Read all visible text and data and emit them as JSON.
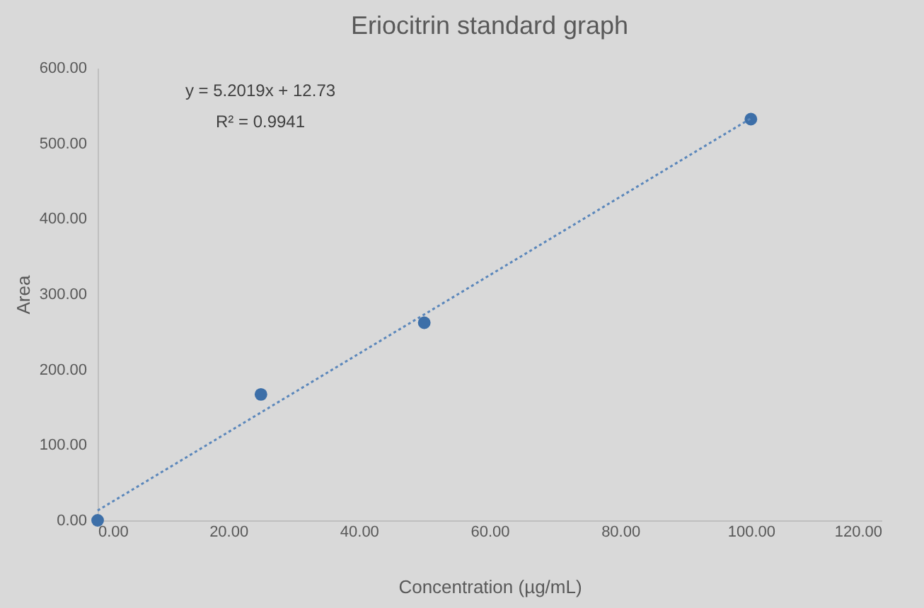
{
  "chart_data": {
    "type": "scatter",
    "title": "Eriocitrin standard graph",
    "xlabel": "Concentration (µg/mL)",
    "ylabel": "Area",
    "x": [
      0,
      25,
      50,
      100
    ],
    "series": [
      {
        "color": "#3d6fa8",
        "values": [
          0,
          167,
          262,
          532
        ]
      },
      {
        "type": "line",
        "color": "#5b87bb",
        "x": [
          0,
          100
        ],
        "values": [
          13,
          533
        ],
        "line_style": "dotted",
        "marker": "none"
      }
    ],
    "xlim": [
      0,
      120
    ],
    "ylim": [
      0,
      600
    ],
    "xticks": [
      {
        "value": 0,
        "label": "0.00"
      },
      {
        "value": 20,
        "label": "20.00"
      },
      {
        "value": 40,
        "label": "40.00"
      },
      {
        "value": 60,
        "label": "60.00"
      },
      {
        "value": 80,
        "label": "80.00"
      },
      {
        "value": 100,
        "label": "100.00"
      },
      {
        "value": 120,
        "label": "120.00"
      }
    ],
    "yticks": [
      {
        "value": 0,
        "label": "0.00"
      },
      {
        "value": 100,
        "label": "100.00"
      },
      {
        "value": 200,
        "label": "200.00"
      },
      {
        "value": 300,
        "label": "300.00"
      },
      {
        "value": 400,
        "label": "400.00"
      },
      {
        "value": 500,
        "label": "500.00"
      },
      {
        "value": 600,
        "label": "600.00"
      }
    ],
    "annotations": [
      "y = 5.2019x + 12.73",
      "R² = 0.9941"
    ],
    "marker": "circle"
  }
}
